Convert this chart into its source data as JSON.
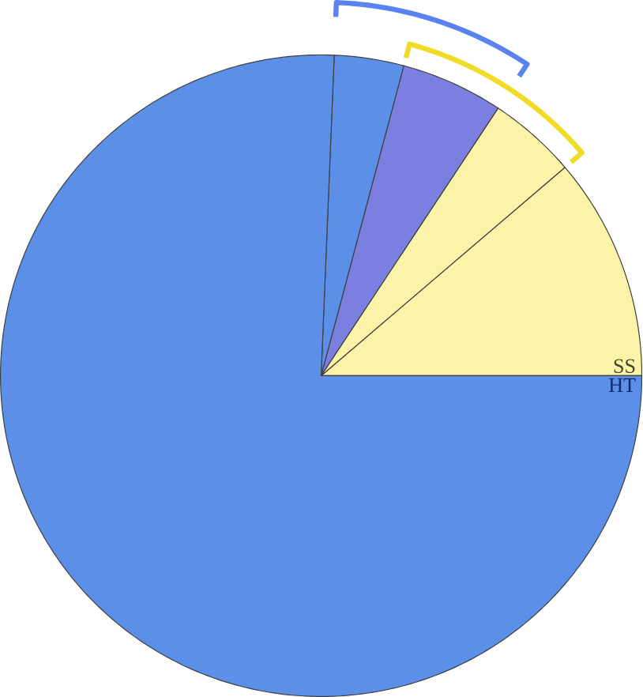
{
  "chart_data": {
    "type": "pie",
    "categories": [
      "SS",
      null,
      null,
      null,
      "HT"
    ],
    "values": [
      11.25,
      4.45,
      5.15,
      3.5,
      75.65
    ],
    "colors": [
      "#fbf3a8",
      "#fbf3a8",
      "#7b7fe0",
      "#5b8fe8",
      "#5b8fe8"
    ]
  }
}
